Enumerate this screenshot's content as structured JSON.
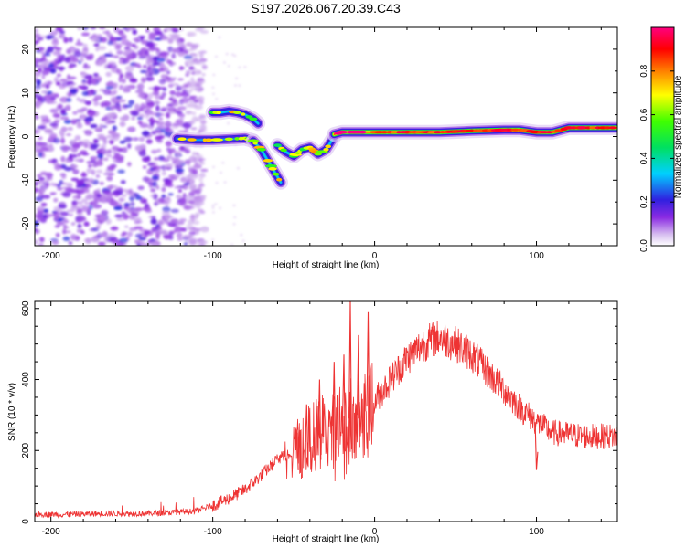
{
  "chart_data": [
    {
      "type": "heatmap",
      "title": "S197.2026.067.20.39.C43",
      "xlabel": "Height of straight line (km)",
      "ylabel": "Frequency (Hz)",
      "xlim": [
        -210,
        150
      ],
      "ylim": [
        -25,
        25
      ],
      "x_ticks": [
        -200,
        -100,
        0,
        100
      ],
      "y_ticks": [
        -20,
        -10,
        0,
        10,
        20
      ],
      "colorbar": {
        "label": "Normalized spectral amplitude",
        "range": [
          0,
          1
        ],
        "ticks": [
          "0.0",
          "0.2",
          "0.4",
          "0.6",
          "0.8"
        ],
        "tick_values": [
          0,
          0.2,
          0.4,
          0.6,
          0.8
        ]
      },
      "features": [
        {
          "name": "noise-region",
          "x_range": [
            -210,
            -100
          ],
          "y_range": [
            -25,
            25
          ],
          "amplitude": 0.15
        },
        {
          "name": "track-upper",
          "x": [
            -100,
            -95,
            -90,
            -85,
            -80,
            -75,
            -72
          ],
          "y": [
            5.5,
            5.5,
            5.8,
            5.5,
            5,
            4,
            3
          ],
          "amplitude": 0.35
        },
        {
          "name": "track-lower",
          "x": [
            -122,
            -110,
            -100,
            -90,
            -80,
            -75
          ],
          "y": [
            -0.5,
            -0.8,
            -0.8,
            -0.6,
            -0.4,
            -1
          ],
          "amplitude": 0.3
        },
        {
          "name": "track-descending",
          "x": [
            -75,
            -70,
            -66,
            -62,
            -58
          ],
          "y": [
            -1,
            -3,
            -5.5,
            -8,
            -10.5
          ],
          "amplitude": 0.35
        },
        {
          "name": "track-mid",
          "x": [
            -60,
            -55,
            -50,
            -45,
            -40,
            -35,
            -30,
            -25
          ],
          "y": [
            -2,
            -3.5,
            -4.5,
            -3,
            -2.5,
            -4,
            -3,
            0
          ],
          "amplitude": 0.35
        },
        {
          "name": "track-main",
          "x": [
            -25,
            -20,
            -10,
            0,
            20,
            40,
            60,
            80,
            90,
            100,
            110,
            120,
            150
          ],
          "y": [
            0.5,
            1,
            1,
            1,
            1,
            1,
            1.3,
            1.5,
            1.5,
            1,
            1,
            2,
            2
          ],
          "amplitude": 0.85
        }
      ]
    },
    {
      "type": "line",
      "xlabel": "Height of straight line (km)",
      "ylabel": "SNR (10 * v/v)",
      "xlim": [
        -210,
        150
      ],
      "ylim": [
        0,
        620
      ],
      "x_ticks": [
        -200,
        -100,
        0,
        100
      ],
      "y_ticks": [
        0,
        200,
        400,
        600
      ],
      "series": [
        {
          "name": "SNR",
          "color": "#ee3333",
          "x": [
            -210,
            -190,
            -170,
            -150,
            -130,
            -110,
            -100,
            -90,
            -80,
            -70,
            -60,
            -50,
            -40,
            -30,
            -20,
            -10,
            0,
            10,
            20,
            30,
            40,
            50,
            60,
            70,
            80,
            90,
            100,
            110,
            120,
            130,
            140,
            150
          ],
          "y": [
            20,
            20,
            22,
            22,
            24,
            30,
            45,
            65,
            90,
            130,
            175,
            200,
            230,
            260,
            280,
            300,
            340,
            400,
            460,
            500,
            520,
            500,
            470,
            420,
            370,
            320,
            280,
            250,
            245,
            240,
            240,
            240
          ]
        }
      ],
      "spikes": [
        {
          "x": -48,
          "y": 250
        },
        {
          "x": -42,
          "y": 330
        },
        {
          "x": -34,
          "y": 400
        },
        {
          "x": -25,
          "y": 450
        },
        {
          "x": -19,
          "y": 470
        },
        {
          "x": -15,
          "y": 625
        },
        {
          "x": -10,
          "y": 525
        },
        {
          "x": -4,
          "y": 590
        },
        {
          "x": 100,
          "y": 145
        }
      ]
    }
  ]
}
